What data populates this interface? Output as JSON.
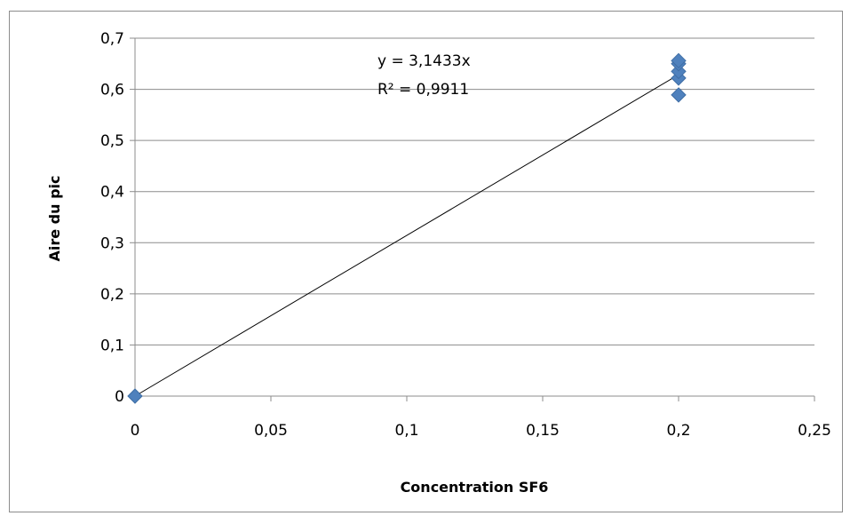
{
  "chart_data": {
    "type": "scatter",
    "xlabel": "Concentration SF6",
    "ylabel": "Aire du pic",
    "xlim": [
      0,
      0.25
    ],
    "ylim": [
      0,
      0.7
    ],
    "x_ticks": [
      "0",
      "0,05",
      "0,1",
      "0,15",
      "0,2",
      "0,25"
    ],
    "y_ticks": [
      "0",
      "0,1",
      "0,2",
      "0,3",
      "0,4",
      "0,5",
      "0,6",
      "0,7"
    ],
    "grid": "horizontal",
    "legend": "none",
    "series": [
      {
        "x": [
          0,
          0.2,
          0.2,
          0.2,
          0.2,
          0.2
        ],
        "y": [
          0,
          0.589,
          0.622,
          0.635,
          0.65,
          0.656
        ],
        "marker": "diamond",
        "color": "#4f81bd"
      }
    ],
    "trendline": {
      "type": "linear",
      "slope": 3.1433,
      "intercept": 0,
      "x_range": [
        0,
        0.2
      ],
      "color": "#000000"
    },
    "annotations": {
      "equation": "y = 3,1433x",
      "r_squared": "R² = 0,9911"
    }
  }
}
